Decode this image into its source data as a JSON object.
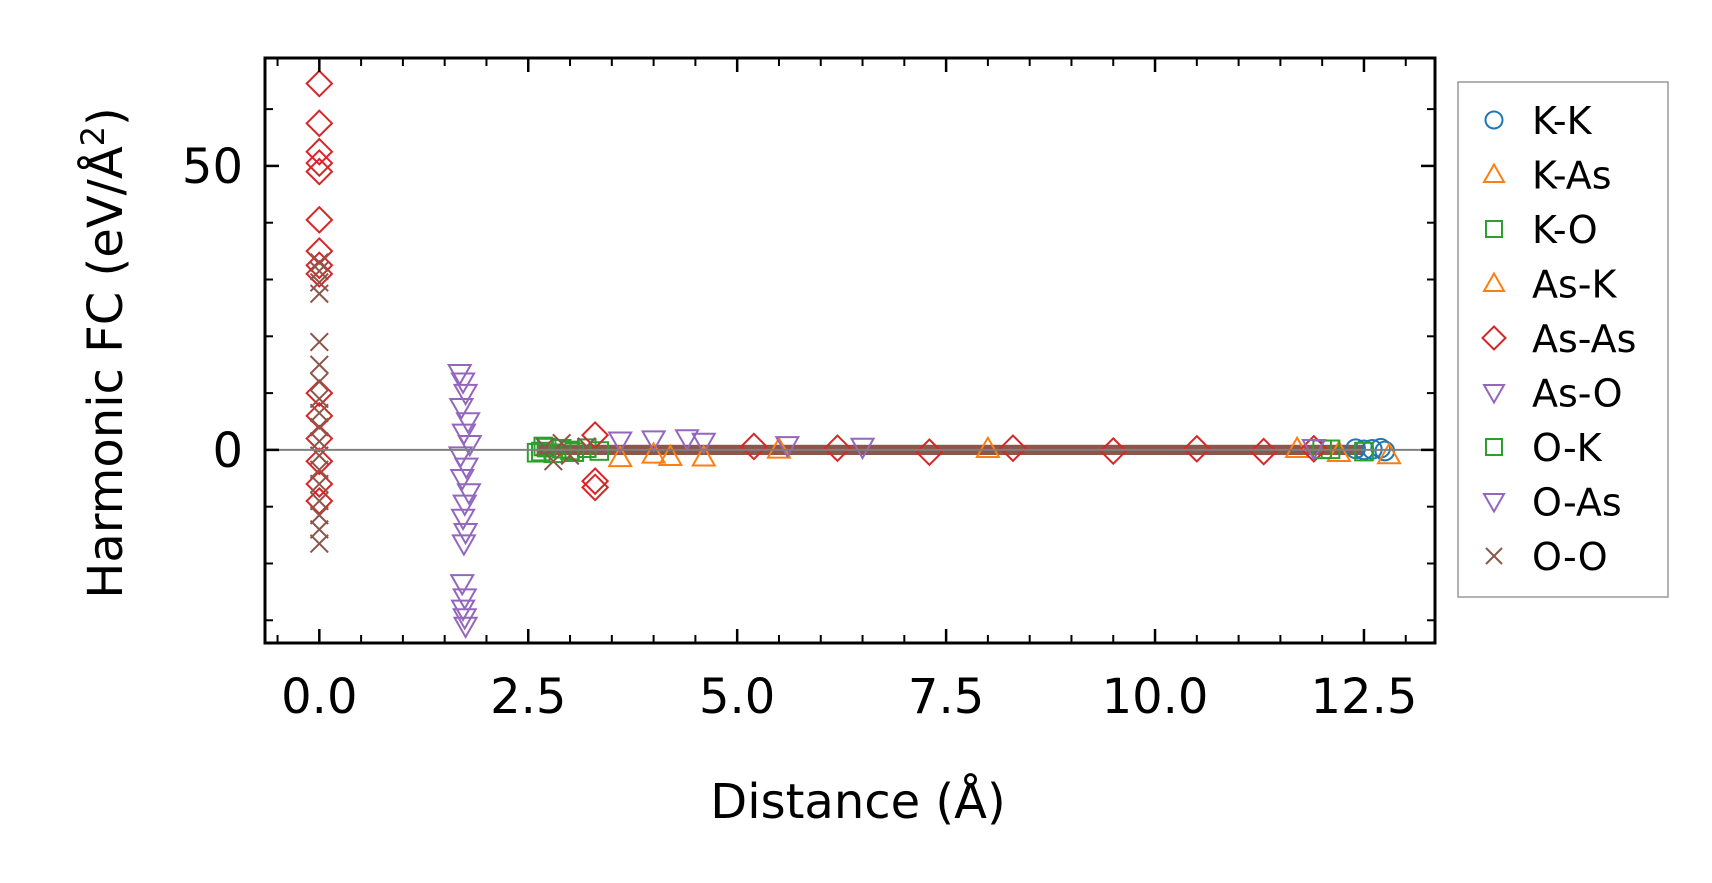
{
  "chart_data": {
    "type": "scatter",
    "xlabel": "Distance (Å)",
    "ylabel_main": "Harmonic FC (eV/Å",
    "ylabel_sup": "2",
    "ylabel_close": ")",
    "xlim": [
      -0.65,
      13.35
    ],
    "ylim": [
      -34,
      69
    ],
    "x_ticks": [
      0.0,
      2.5,
      5.0,
      7.5,
      10.0,
      12.5
    ],
    "x_tick_labels": [
      "0.0",
      "2.5",
      "5.0",
      "7.5",
      "10.0",
      "12.5"
    ],
    "y_ticks": [
      0,
      50
    ],
    "y_tick_labels": [
      "0",
      "50"
    ],
    "zero_line": true,
    "legend_position": "right, outside plot",
    "series": [
      {
        "name": "K-K",
        "marker": "circle",
        "color": "#1f77b4",
        "points": [
          [
            12.6,
            0.1
          ],
          [
            12.7,
            0.3
          ],
          [
            12.75,
            -0.2
          ],
          [
            12.5,
            0.0
          ],
          [
            12.4,
            0.2
          ]
        ]
      },
      {
        "name": "K-As",
        "marker": "triangle-up",
        "color": "#ff7f0e",
        "points": [
          [
            3.6,
            -1.4
          ],
          [
            4.2,
            -1.2
          ],
          [
            4.6,
            -1.3
          ],
          [
            12.8,
            -0.9
          ],
          [
            12.2,
            -0.5
          ],
          [
            8.0,
            0.2
          ]
        ]
      },
      {
        "name": "K-O",
        "marker": "square",
        "color": "#2ca02c",
        "points": [
          [
            2.65,
            -0.3
          ],
          [
            2.72,
            0.4
          ],
          [
            2.8,
            -0.6
          ],
          [
            2.9,
            0.2
          ],
          [
            3.05,
            -0.4
          ],
          [
            3.2,
            0.3
          ],
          [
            3.35,
            -0.2
          ],
          [
            12.1,
            0.1
          ],
          [
            12.5,
            -0.3
          ]
        ]
      },
      {
        "name": "As-K",
        "marker": "triangle-up",
        "color": "#ff7f0e",
        "points": [
          [
            4.0,
            -0.8
          ],
          [
            5.5,
            0.1
          ],
          [
            11.7,
            0.2
          ]
        ]
      },
      {
        "name": "As-As",
        "marker": "diamond",
        "color": "#d62728",
        "points": [
          [
            0,
            64.5
          ],
          [
            0,
            57.5
          ],
          [
            0,
            52.5
          ],
          [
            0,
            50.5
          ],
          [
            0,
            49.0
          ],
          [
            0,
            40.5
          ],
          [
            0,
            35.0
          ],
          [
            0,
            32.5
          ],
          [
            0,
            31.0
          ],
          [
            0,
            10.0
          ],
          [
            0,
            6.0
          ],
          [
            0,
            2.0
          ],
          [
            0,
            -2.0
          ],
          [
            0,
            -6.0
          ],
          [
            0,
            -9.0
          ],
          [
            3.3,
            2.6
          ],
          [
            3.3,
            -5.5
          ],
          [
            3.3,
            -6.6
          ],
          [
            5.2,
            0.6
          ],
          [
            6.2,
            0.3
          ],
          [
            7.3,
            -0.4
          ],
          [
            8.3,
            0.3
          ],
          [
            9.5,
            -0.2
          ],
          [
            10.5,
            0.2
          ],
          [
            11.3,
            -0.3
          ],
          [
            11.9,
            0.2
          ]
        ]
      },
      {
        "name": "As-O",
        "marker": "triangle-down",
        "color": "#9467bd",
        "points": [
          [
            1.68,
            13.5
          ],
          [
            1.72,
            12.0
          ],
          [
            1.75,
            10.0
          ],
          [
            1.7,
            7.5
          ],
          [
            1.78,
            5.0
          ],
          [
            1.73,
            3.0
          ],
          [
            1.8,
            1.0
          ],
          [
            1.69,
            -1.0
          ],
          [
            1.76,
            -3.0
          ],
          [
            1.71,
            -5.0
          ],
          [
            1.79,
            -7.5
          ],
          [
            1.74,
            -9.5
          ],
          [
            1.72,
            -12.0
          ],
          [
            1.75,
            -14.5
          ],
          [
            1.73,
            -16.5
          ],
          [
            1.71,
            -23.5
          ],
          [
            1.74,
            -26.0
          ],
          [
            1.72,
            -28.0
          ],
          [
            1.74,
            -29.5
          ],
          [
            1.75,
            -31.0
          ]
        ]
      },
      {
        "name": "O-K",
        "marker": "square",
        "color": "#2ca02c",
        "points": [
          [
            2.6,
            -0.5
          ],
          [
            2.68,
            0.6
          ],
          [
            3.0,
            -0.1
          ],
          [
            12.0,
            0.1
          ]
        ]
      },
      {
        "name": "O-As",
        "marker": "triangle-down",
        "color": "#9467bd",
        "points": [
          [
            3.6,
            1.6
          ],
          [
            4.0,
            1.8
          ],
          [
            4.4,
            2.0
          ],
          [
            4.6,
            1.4
          ],
          [
            5.6,
            0.8
          ],
          [
            6.5,
            0.5
          ],
          [
            11.9,
            0.3
          ]
        ]
      },
      {
        "name": "O-O",
        "marker": "x",
        "color": "#8c564b",
        "points": [
          [
            0,
            33.0
          ],
          [
            0,
            31.5
          ],
          [
            0,
            29.5
          ],
          [
            0,
            27.5
          ],
          [
            0,
            19.0
          ],
          [
            0,
            15.0
          ],
          [
            0,
            12.0
          ],
          [
            0,
            9.0
          ],
          [
            0,
            6.5
          ],
          [
            0,
            4.0
          ],
          [
            0,
            1.5
          ],
          [
            0,
            -1.0
          ],
          [
            0,
            -3.5
          ],
          [
            0,
            -6.0
          ],
          [
            0,
            -9.0
          ],
          [
            0,
            -11.5
          ],
          [
            0,
            -14.0
          ],
          [
            0,
            -16.5
          ],
          [
            2.7,
            0.5
          ],
          [
            2.8,
            -2.0
          ],
          [
            2.9,
            1.2
          ],
          [
            3.0,
            -1.0
          ],
          [
            3.2,
            0.6
          ]
        ]
      }
    ]
  }
}
